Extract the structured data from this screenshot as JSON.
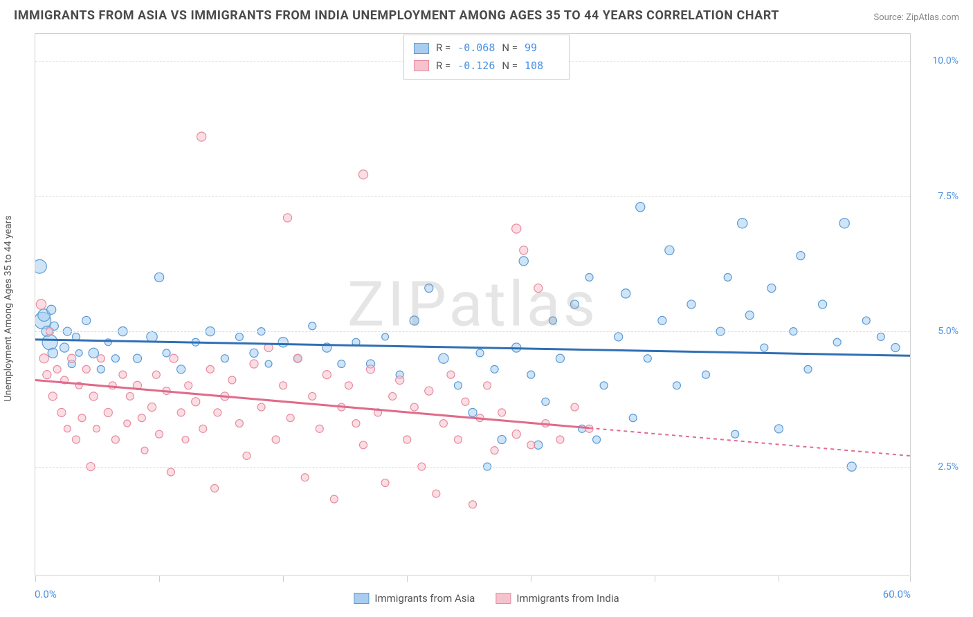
{
  "title": "IMMIGRANTS FROM ASIA VS IMMIGRANTS FROM INDIA UNEMPLOYMENT AMONG AGES 35 TO 44 YEARS CORRELATION CHART",
  "source": "Source: ZipAtlas.com",
  "ylabel": "Unemployment Among Ages 35 to 44 years",
  "watermark": "ZIPatlas",
  "xlim": [
    0,
    60
  ],
  "ylim": [
    0.5,
    10.5
  ],
  "x_axis_min_label": "0.0%",
  "x_axis_max_label": "60.0%",
  "y_ticks": [
    {
      "v": 2.5,
      "label": "2.5%"
    },
    {
      "v": 5.0,
      "label": "5.0%"
    },
    {
      "v": 7.5,
      "label": "7.5%"
    },
    {
      "v": 10.0,
      "label": "10.0%"
    }
  ],
  "x_tick_positions": [
    0,
    8.5,
    17,
    25.5,
    34,
    42.5,
    51,
    60
  ],
  "series": [
    {
      "name": "Immigrants from Asia",
      "fill": "#a8cdf0",
      "stroke": "#5a9bd5",
      "line_color": "#2f6fb5",
      "R": "-0.068",
      "N": "99",
      "trend": {
        "x1": 0,
        "y1": 4.85,
        "x2": 60,
        "y2": 4.55,
        "solid_until": 60
      },
      "points": [
        [
          0.3,
          6.2,
          18
        ],
        [
          0.5,
          5.2,
          22
        ],
        [
          0.6,
          5.3,
          16
        ],
        [
          0.8,
          5.0,
          14
        ],
        [
          1,
          4.8,
          20
        ],
        [
          1.1,
          5.4,
          12
        ],
        [
          1.2,
          4.6,
          13
        ],
        [
          1.3,
          5.1,
          11
        ],
        [
          2,
          4.7,
          12
        ],
        [
          2.2,
          5.0,
          11
        ],
        [
          2.5,
          4.4,
          10
        ],
        [
          2.8,
          4.9,
          10
        ],
        [
          3,
          4.6,
          9
        ],
        [
          3.5,
          5.2,
          11
        ],
        [
          4,
          4.6,
          13
        ],
        [
          4.5,
          4.3,
          10
        ],
        [
          5,
          4.8,
          9
        ],
        [
          5.5,
          4.5,
          10
        ],
        [
          6,
          5.0,
          12
        ],
        [
          7,
          4.5,
          11
        ],
        [
          8,
          4.9,
          14
        ],
        [
          8.5,
          6.0,
          12
        ],
        [
          9,
          4.6,
          10
        ],
        [
          10,
          4.3,
          11
        ],
        [
          11,
          4.8,
          10
        ],
        [
          12,
          5.0,
          12
        ],
        [
          13,
          4.5,
          10
        ],
        [
          14,
          4.9,
          10
        ],
        [
          15,
          4.6,
          11
        ],
        [
          15.5,
          5.0,
          10
        ],
        [
          16,
          4.4,
          9
        ],
        [
          17,
          4.8,
          13
        ],
        [
          18,
          4.5,
          10
        ],
        [
          19,
          5.1,
          10
        ],
        [
          20,
          4.7,
          12
        ],
        [
          21,
          4.4,
          10
        ],
        [
          22,
          4.8,
          10
        ],
        [
          23,
          4.4,
          11
        ],
        [
          24,
          4.9,
          9
        ],
        [
          25,
          4.2,
          10
        ],
        [
          26,
          5.2,
          12
        ],
        [
          27,
          5.8,
          11
        ],
        [
          28,
          4.5,
          13
        ],
        [
          29,
          4.0,
          10
        ],
        [
          30,
          3.5,
          11
        ],
        [
          30.5,
          4.6,
          10
        ],
        [
          31,
          2.5,
          10
        ],
        [
          31.5,
          4.3,
          10
        ],
        [
          32,
          3.0,
          11
        ],
        [
          33,
          4.7,
          12
        ],
        [
          33.5,
          6.3,
          12
        ],
        [
          34,
          4.2,
          10
        ],
        [
          34.5,
          2.9,
          11
        ],
        [
          35,
          3.7,
          10
        ],
        [
          35.5,
          5.2,
          10
        ],
        [
          36,
          4.5,
          11
        ],
        [
          37,
          5.5,
          11
        ],
        [
          37.5,
          3.2,
          10
        ],
        [
          38,
          6.0,
          10
        ],
        [
          38.5,
          3.0,
          10
        ],
        [
          39,
          4.0,
          10
        ],
        [
          40,
          4.9,
          11
        ],
        [
          40.5,
          5.7,
          12
        ],
        [
          41,
          3.4,
          10
        ],
        [
          41.5,
          7.3,
          12
        ],
        [
          42,
          4.5,
          10
        ],
        [
          43,
          5.2,
          11
        ],
        [
          43.5,
          6.5,
          12
        ],
        [
          44,
          4.0,
          10
        ],
        [
          45,
          5.5,
          11
        ],
        [
          46,
          4.2,
          10
        ],
        [
          47,
          5.0,
          11
        ],
        [
          47.5,
          6.0,
          10
        ],
        [
          48,
          3.1,
          10
        ],
        [
          48.5,
          7.0,
          13
        ],
        [
          49,
          5.3,
          11
        ],
        [
          50,
          4.7,
          10
        ],
        [
          50.5,
          5.8,
          11
        ],
        [
          51,
          3.2,
          11
        ],
        [
          52,
          5.0,
          10
        ],
        [
          52.5,
          6.4,
          11
        ],
        [
          53,
          4.3,
          10
        ],
        [
          54,
          5.5,
          11
        ],
        [
          55,
          4.8,
          10
        ],
        [
          55.5,
          7.0,
          13
        ],
        [
          56,
          2.5,
          12
        ],
        [
          57,
          5.2,
          10
        ],
        [
          58,
          4.9,
          10
        ],
        [
          59,
          4.7,
          11
        ]
      ]
    },
    {
      "name": "Immigrants from India",
      "fill": "#f5c2cd",
      "stroke": "#e88ba0",
      "line_color": "#e06b8a",
      "R": "-0.126",
      "N": "108",
      "trend": {
        "x1": 0,
        "y1": 4.1,
        "x2": 60,
        "y2": 2.7,
        "solid_until": 38
      },
      "points": [
        [
          0.4,
          5.5,
          13
        ],
        [
          0.6,
          4.5,
          12
        ],
        [
          0.8,
          4.2,
          11
        ],
        [
          1,
          5.0,
          10
        ],
        [
          1.2,
          3.8,
          11
        ],
        [
          1.5,
          4.3,
          10
        ],
        [
          1.8,
          3.5,
          11
        ],
        [
          2,
          4.1,
          10
        ],
        [
          2.2,
          3.2,
          9
        ],
        [
          2.5,
          4.5,
          11
        ],
        [
          2.8,
          3.0,
          10
        ],
        [
          3,
          4.0,
          9
        ],
        [
          3.2,
          3.4,
          10
        ],
        [
          3.5,
          4.3,
          10
        ],
        [
          3.8,
          2.5,
          11
        ],
        [
          4,
          3.8,
          11
        ],
        [
          4.2,
          3.2,
          9
        ],
        [
          4.5,
          4.5,
          10
        ],
        [
          5,
          3.5,
          11
        ],
        [
          5.3,
          4.0,
          10
        ],
        [
          5.5,
          3.0,
          10
        ],
        [
          6,
          4.2,
          10
        ],
        [
          6.3,
          3.3,
          9
        ],
        [
          6.5,
          3.8,
          10
        ],
        [
          7,
          4.0,
          11
        ],
        [
          7.3,
          3.4,
          10
        ],
        [
          7.5,
          2.8,
          9
        ],
        [
          8,
          3.6,
          11
        ],
        [
          8.3,
          4.2,
          10
        ],
        [
          8.5,
          3.1,
          10
        ],
        [
          9,
          3.9,
          10
        ],
        [
          9.3,
          2.4,
          10
        ],
        [
          9.5,
          4.5,
          11
        ],
        [
          10,
          3.5,
          10
        ],
        [
          10.3,
          3.0,
          9
        ],
        [
          10.5,
          4.0,
          10
        ],
        [
          11,
          3.7,
          11
        ],
        [
          11.5,
          3.2,
          10
        ],
        [
          11.4,
          8.6,
          12
        ],
        [
          12,
          4.3,
          10
        ],
        [
          12.3,
          2.1,
          10
        ],
        [
          12.5,
          3.5,
          10
        ],
        [
          13,
          3.8,
          11
        ],
        [
          13.5,
          4.1,
          10
        ],
        [
          14,
          3.3,
          10
        ],
        [
          14.5,
          2.7,
          10
        ],
        [
          15,
          4.4,
          11
        ],
        [
          15.5,
          3.6,
          10
        ],
        [
          16,
          4.7,
          11
        ],
        [
          16.5,
          3.0,
          10
        ],
        [
          17,
          4.0,
          10
        ],
        [
          17.3,
          7.1,
          11
        ],
        [
          17.5,
          3.4,
          10
        ],
        [
          18,
          4.5,
          11
        ],
        [
          18.5,
          2.3,
          10
        ],
        [
          19,
          3.8,
          10
        ],
        [
          19.5,
          3.2,
          10
        ],
        [
          20,
          4.2,
          11
        ],
        [
          20.5,
          1.9,
          10
        ],
        [
          21,
          3.6,
          10
        ],
        [
          21.5,
          4.0,
          10
        ],
        [
          22,
          3.3,
          10
        ],
        [
          22.5,
          7.9,
          12
        ],
        [
          22.5,
          2.9,
          10
        ],
        [
          23,
          4.3,
          11
        ],
        [
          23.5,
          3.5,
          10
        ],
        [
          24,
          2.2,
          10
        ],
        [
          24.5,
          3.8,
          10
        ],
        [
          25,
          4.1,
          11
        ],
        [
          25.5,
          3.0,
          10
        ],
        [
          26,
          3.6,
          10
        ],
        [
          26.5,
          2.5,
          10
        ],
        [
          27,
          3.9,
          11
        ],
        [
          27.5,
          2.0,
          10
        ],
        [
          28,
          3.3,
          10
        ],
        [
          28.5,
          4.2,
          10
        ],
        [
          29,
          3.0,
          10
        ],
        [
          29.5,
          3.7,
          10
        ],
        [
          30,
          1.8,
          10
        ],
        [
          30.5,
          3.4,
          10
        ],
        [
          31,
          4.0,
          10
        ],
        [
          31.5,
          2.8,
          10
        ],
        [
          32,
          3.5,
          10
        ],
        [
          33,
          3.1,
          11
        ],
        [
          33,
          6.9,
          12
        ],
        [
          33.5,
          6.5,
          11
        ],
        [
          34,
          2.9,
          10
        ],
        [
          34.5,
          5.8,
          11
        ],
        [
          35,
          3.3,
          10
        ],
        [
          36,
          3.0,
          10
        ],
        [
          37,
          3.6,
          10
        ],
        [
          38,
          3.2,
          10
        ]
      ]
    }
  ],
  "legend": {
    "label_asia": "Immigrants from Asia",
    "label_india": "Immigrants from India"
  },
  "stats_labels": {
    "R": "R =",
    "N": "N ="
  },
  "colors": {
    "title": "#4a4a4a",
    "axis_label": "#4a90e2",
    "grid": "#dddddd",
    "border": "#d0d0d0",
    "background": "#ffffff",
    "watermark": "rgba(150,150,150,0.25)"
  },
  "title_fontsize": 18,
  "label_fontsize": 14
}
